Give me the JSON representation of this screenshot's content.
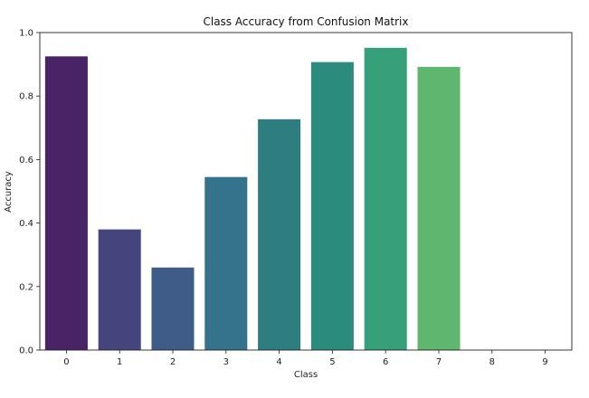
{
  "chart_data": {
    "type": "bar",
    "title": "Class Accuracy from Confusion Matrix",
    "xlabel": "Class",
    "ylabel": "Accuracy",
    "categories": [
      "0",
      "1",
      "2",
      "3",
      "4",
      "5",
      "6",
      "7",
      "8",
      "9"
    ],
    "values": [
      0.925,
      0.38,
      0.26,
      0.545,
      0.727,
      0.907,
      0.952,
      0.892,
      0.0,
      0.0
    ],
    "colors": [
      "#482466",
      "#46447c",
      "#3e5c87",
      "#35728b",
      "#2e7e80",
      "#2b8c7e",
      "#35a07a",
      "#5fb66e",
      "#9ad459",
      "#d8e440"
    ],
    "ylim": [
      0.0,
      1.0
    ],
    "yticks": [
      "0.0",
      "0.2",
      "0.4",
      "0.6",
      "0.8",
      "1.0"
    ],
    "grid": false,
    "legend": "none"
  }
}
